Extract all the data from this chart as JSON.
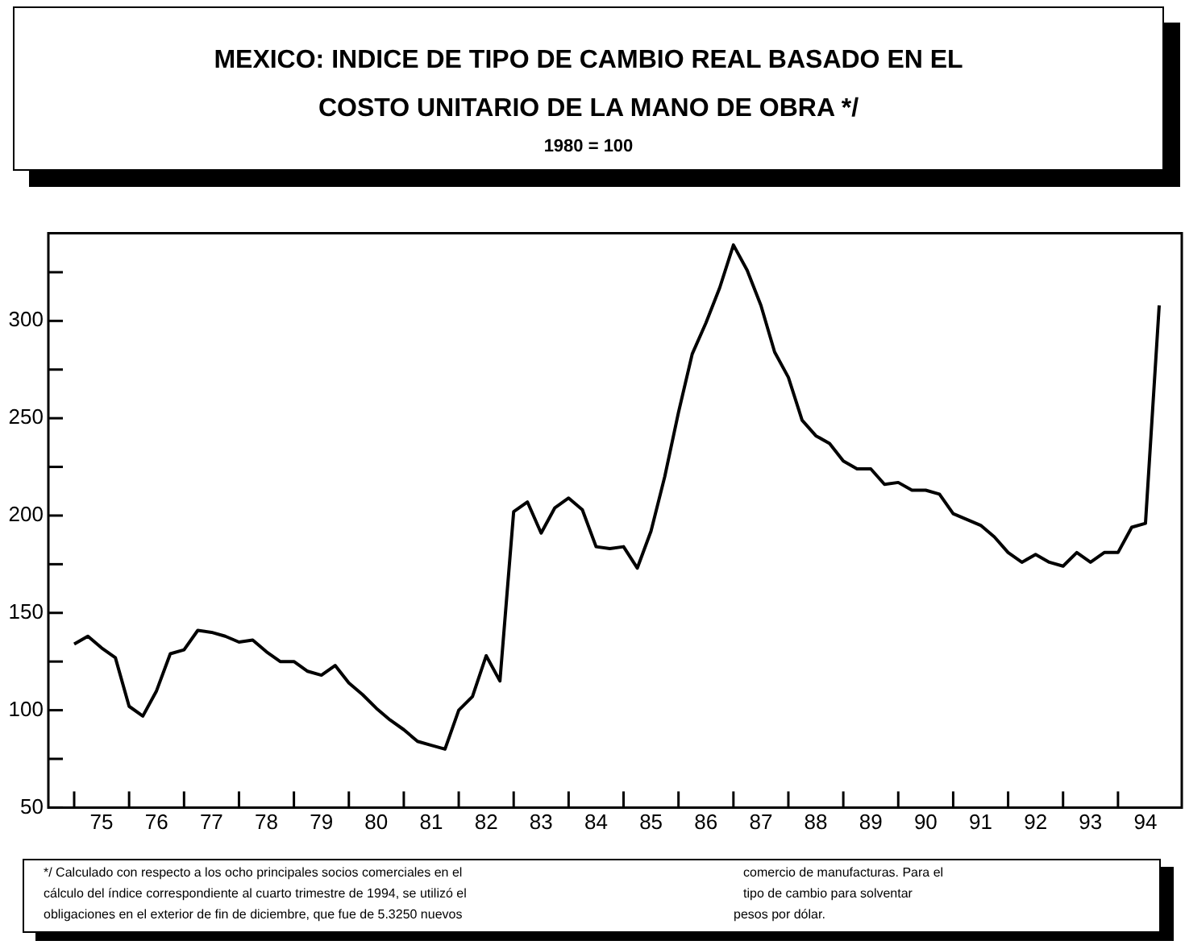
{
  "chart_data": {
    "type": "line",
    "title": "MEXICO: INDICE DE TIPO DE CAMBIO REAL BASADO EN EL COSTO UNITARIO DE LA MANO DE OBRA */",
    "subtitle": "1980 = 100",
    "categories": [
      null,
      null,
      "75",
      null,
      null,
      null,
      "76",
      null,
      null,
      null,
      "77",
      null,
      null,
      null,
      "78",
      null,
      null,
      null,
      "79",
      null,
      null,
      null,
      "80",
      null,
      null,
      null,
      "81",
      null,
      null,
      null,
      "82",
      null,
      null,
      null,
      "83",
      null,
      null,
      null,
      "84",
      null,
      null,
      null,
      "85",
      null,
      null,
      null,
      "86",
      null,
      null,
      null,
      "87",
      null,
      null,
      null,
      "88",
      null,
      null,
      null,
      "89",
      null,
      null,
      null,
      "90",
      null,
      null,
      null,
      "91",
      null,
      null,
      null,
      "92",
      null,
      null,
      null,
      "93",
      null,
      null,
      null,
      "94",
      null
    ],
    "series": [
      {
        "color": "#000000",
        "values": [
          134,
          138,
          132,
          127,
          102,
          97,
          110,
          129,
          131,
          141,
          140,
          138,
          135,
          136,
          130,
          125,
          125,
          120,
          118,
          123,
          114,
          108,
          101,
          95,
          90,
          84,
          82,
          80,
          100,
          107,
          128,
          115,
          202,
          207,
          191,
          204,
          209,
          203,
          184,
          183,
          184,
          173,
          192,
          220,
          253,
          283,
          299,
          317,
          339,
          326,
          308,
          284,
          271,
          249,
          241,
          237,
          228,
          224,
          224,
          216,
          217,
          213,
          213,
          211,
          201,
          198,
          195,
          189,
          181,
          176,
          180,
          176,
          174,
          181,
          176,
          181,
          181,
          194,
          196,
          308
        ]
      }
    ],
    "ylim": [
      50,
      345
    ],
    "yticks": [
      50,
      {
        "value": 75,
        "label": null
      },
      100,
      {
        "value": 125,
        "label": null
      },
      150,
      {
        "value": 175,
        "label": null
      },
      200,
      {
        "value": 225,
        "label": null
      },
      250,
      {
        "value": 275,
        "label": null
      },
      300,
      {
        "value": 325,
        "label": null
      }
    ],
    "marker": "none",
    "line_style": "solid",
    "grid": false,
    "legend": false,
    "annotations": [
      "*/ Calculado con respecto a los ocho principales socios comerciales en el",
      "comercio de manufacturas. Para el",
      "cálculo del índice correspondiente al cuarto trimestre de 1994, se utilizó el",
      "tipo de cambio para solventar",
      "obligaciones en el exterior de fin de diciembre, que fue de 5.3250 nuevos",
      "pesos por dólar."
    ]
  }
}
